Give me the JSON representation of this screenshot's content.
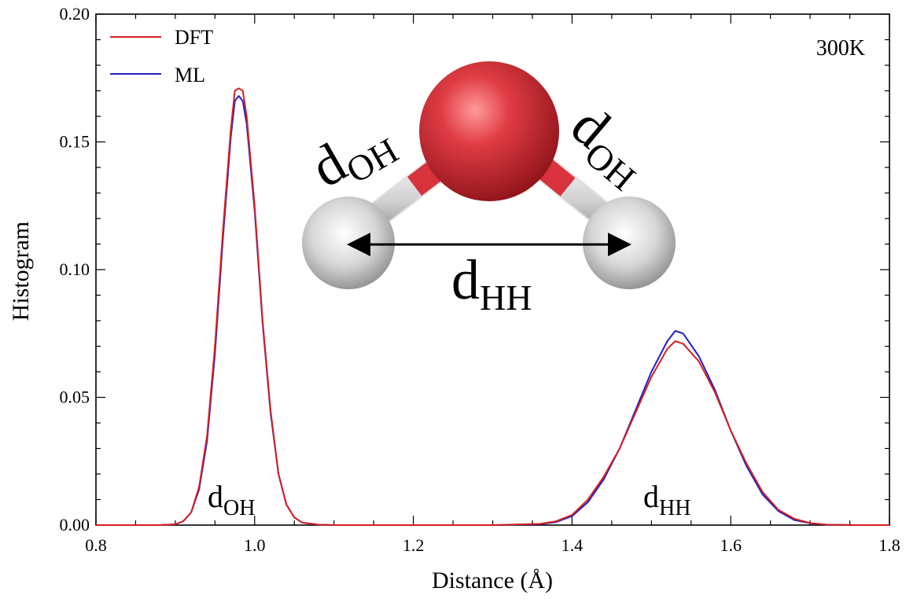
{
  "chart_data": {
    "type": "line",
    "title": "",
    "xlabel": "Distance (Å)",
    "ylabel": "Histogram",
    "xlim": [
      0.8,
      1.8
    ],
    "ylim": [
      0.0,
      0.2
    ],
    "xticks": [
      0.8,
      1.0,
      1.2,
      1.4,
      1.6,
      1.8
    ],
    "xtick_labels": [
      "0.8",
      "1.0",
      "1.2",
      "1.4",
      "1.6",
      "1.8"
    ],
    "yticks": [
      0.0,
      0.05,
      0.1,
      0.15,
      0.2
    ],
    "ytick_labels": [
      "0.00",
      "0.05",
      "0.10",
      "0.15",
      "0.20"
    ],
    "grid": false,
    "legend_position": "top-left",
    "series": [
      {
        "name": "DFT",
        "color": "#d42020",
        "x": [
          0.8,
          0.88,
          0.9,
          0.91,
          0.92,
          0.93,
          0.94,
          0.95,
          0.96,
          0.97,
          0.975,
          0.98,
          0.985,
          0.99,
          1.0,
          1.01,
          1.02,
          1.03,
          1.04,
          1.05,
          1.06,
          1.08,
          1.1,
          1.2,
          1.3,
          1.36,
          1.38,
          1.4,
          1.42,
          1.44,
          1.46,
          1.48,
          1.5,
          1.52,
          1.53,
          1.54,
          1.56,
          1.58,
          1.6,
          1.62,
          1.64,
          1.66,
          1.68,
          1.7,
          1.72,
          1.76,
          1.8
        ],
        "y": [
          0.0,
          0.0,
          0.0003,
          0.0015,
          0.005,
          0.015,
          0.035,
          0.07,
          0.115,
          0.155,
          0.17,
          0.171,
          0.17,
          0.16,
          0.125,
          0.08,
          0.045,
          0.02,
          0.008,
          0.003,
          0.001,
          0.0002,
          0.0,
          0.0,
          0.0,
          0.0005,
          0.0015,
          0.004,
          0.01,
          0.019,
          0.03,
          0.044,
          0.058,
          0.069,
          0.072,
          0.071,
          0.064,
          0.052,
          0.037,
          0.024,
          0.013,
          0.006,
          0.0025,
          0.0008,
          0.0002,
          0.0,
          0.0
        ]
      },
      {
        "name": "ML",
        "color": "#2020c8",
        "x": [
          0.8,
          0.88,
          0.9,
          0.91,
          0.92,
          0.93,
          0.94,
          0.95,
          0.96,
          0.97,
          0.975,
          0.98,
          0.985,
          0.99,
          1.0,
          1.01,
          1.02,
          1.03,
          1.04,
          1.05,
          1.06,
          1.08,
          1.1,
          1.2,
          1.3,
          1.36,
          1.38,
          1.4,
          1.42,
          1.44,
          1.46,
          1.48,
          1.5,
          1.52,
          1.53,
          1.54,
          1.56,
          1.58,
          1.6,
          1.62,
          1.64,
          1.66,
          1.68,
          1.7,
          1.72,
          1.76,
          1.8
        ],
        "y": [
          0.0,
          0.0,
          0.0003,
          0.0015,
          0.005,
          0.014,
          0.033,
          0.067,
          0.112,
          0.152,
          0.166,
          0.168,
          0.166,
          0.157,
          0.123,
          0.079,
          0.044,
          0.02,
          0.008,
          0.003,
          0.001,
          0.0002,
          0.0,
          0.0,
          0.0,
          0.0004,
          0.0012,
          0.0035,
          0.009,
          0.018,
          0.03,
          0.045,
          0.06,
          0.072,
          0.076,
          0.075,
          0.066,
          0.053,
          0.037,
          0.023,
          0.012,
          0.0055,
          0.002,
          0.0007,
          0.0002,
          0.0,
          0.0
        ]
      }
    ],
    "annotations": [
      {
        "id": "temperature",
        "text": "300K"
      },
      {
        "id": "peak-oh",
        "base": "d",
        "sub": "OH"
      },
      {
        "id": "peak-hh",
        "base": "d",
        "sub": "HH"
      }
    ],
    "molecule": {
      "oxygen_color": "#d8323c",
      "hydrogen_color": "#d9d9d9",
      "bond_label_left": {
        "base": "d",
        "sub": "OH"
      },
      "bond_label_right": {
        "base": "d",
        "sub": "OH"
      },
      "hh_label": {
        "base": "d",
        "sub": "HH"
      }
    }
  }
}
